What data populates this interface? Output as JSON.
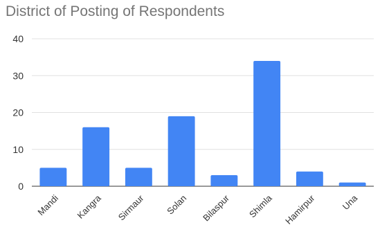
{
  "chart_data": {
    "type": "bar",
    "title": "District of Posting of Respondents",
    "xlabel": "",
    "ylabel": "",
    "categories": [
      "Mandi",
      "Kangra",
      "Sirmaur",
      "Solan",
      "Bilaspur",
      "Shimla",
      "Hamirpur",
      "Una"
    ],
    "series": [
      {
        "values": [
          5,
          16,
          5,
          19,
          3,
          34,
          4,
          1
        ]
      }
    ],
    "ylim": [
      0,
      40
    ],
    "yticks": [
      "0",
      "10",
      "20",
      "30",
      "40"
    ],
    "grid": true,
    "legend": "none",
    "colors": {
      "bar": "#4285f4",
      "grid": "#e0e0e0",
      "axis": "#333333",
      "title": "#757575"
    }
  }
}
